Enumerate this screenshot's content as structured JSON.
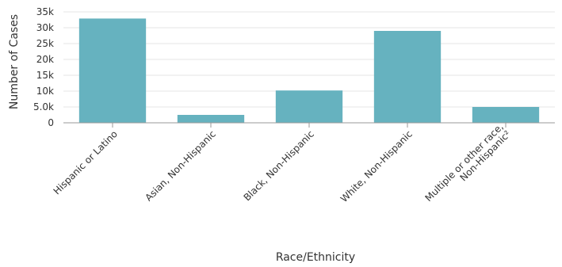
{
  "chart_data": {
    "type": "bar",
    "categories": [
      [
        "Hispanic or Latino"
      ],
      [
        "Asian, Non-Hispanic"
      ],
      [
        "Black, Non-Hispanic"
      ],
      [
        "White, Non-Hispanic"
      ],
      [
        "Multiple or other race,",
        "Non-Hispanic²"
      ]
    ],
    "values": [
      32900,
      2500,
      10200,
      29000,
      5000
    ],
    "xlabel": "Race/Ethnicity",
    "ylabel": "Number of Cases",
    "ylim": [
      0,
      35000
    ],
    "yticks": [
      0,
      5000,
      10000,
      15000,
      20000,
      25000,
      30000,
      35000
    ],
    "ytick_labels": [
      "0",
      "5.0k",
      "10k",
      "15k",
      "20k",
      "25k",
      "30k",
      "35k"
    ],
    "grid": true,
    "legend": "none",
    "colors": {
      "bar": "#66b2bf",
      "grid": "#e6e6e6",
      "axis": "#999999"
    }
  }
}
